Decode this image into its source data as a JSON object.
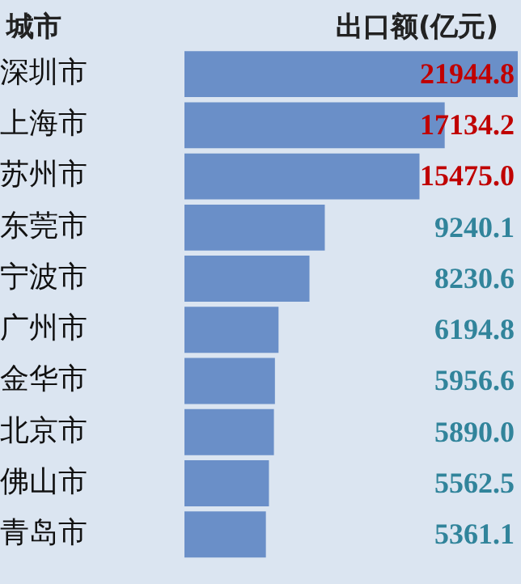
{
  "chart_data": {
    "type": "bar",
    "orientation": "horizontal",
    "ylabel": "城市",
    "xlabel": "出口额(亿元)",
    "categories": [
      "深圳市",
      "上海市",
      "苏州市",
      "东莞市",
      "宁波市",
      "广州市",
      "金华市",
      "北京市",
      "佛山市",
      "青岛市"
    ],
    "values": [
      21944.8,
      17134.2,
      15475.0,
      9240.1,
      8230.6,
      6194.8,
      5956.6,
      5890.0,
      5562.5,
      5361.1
    ],
    "value_labels": [
      "21944.8",
      "17134.2",
      "15475.0",
      "9240.1",
      "8230.6",
      "6194.8",
      "5956.6",
      "5890.0",
      "5562.5",
      "5361.1"
    ],
    "color": "#6a8fc8",
    "grid": false,
    "legend": false
  }
}
